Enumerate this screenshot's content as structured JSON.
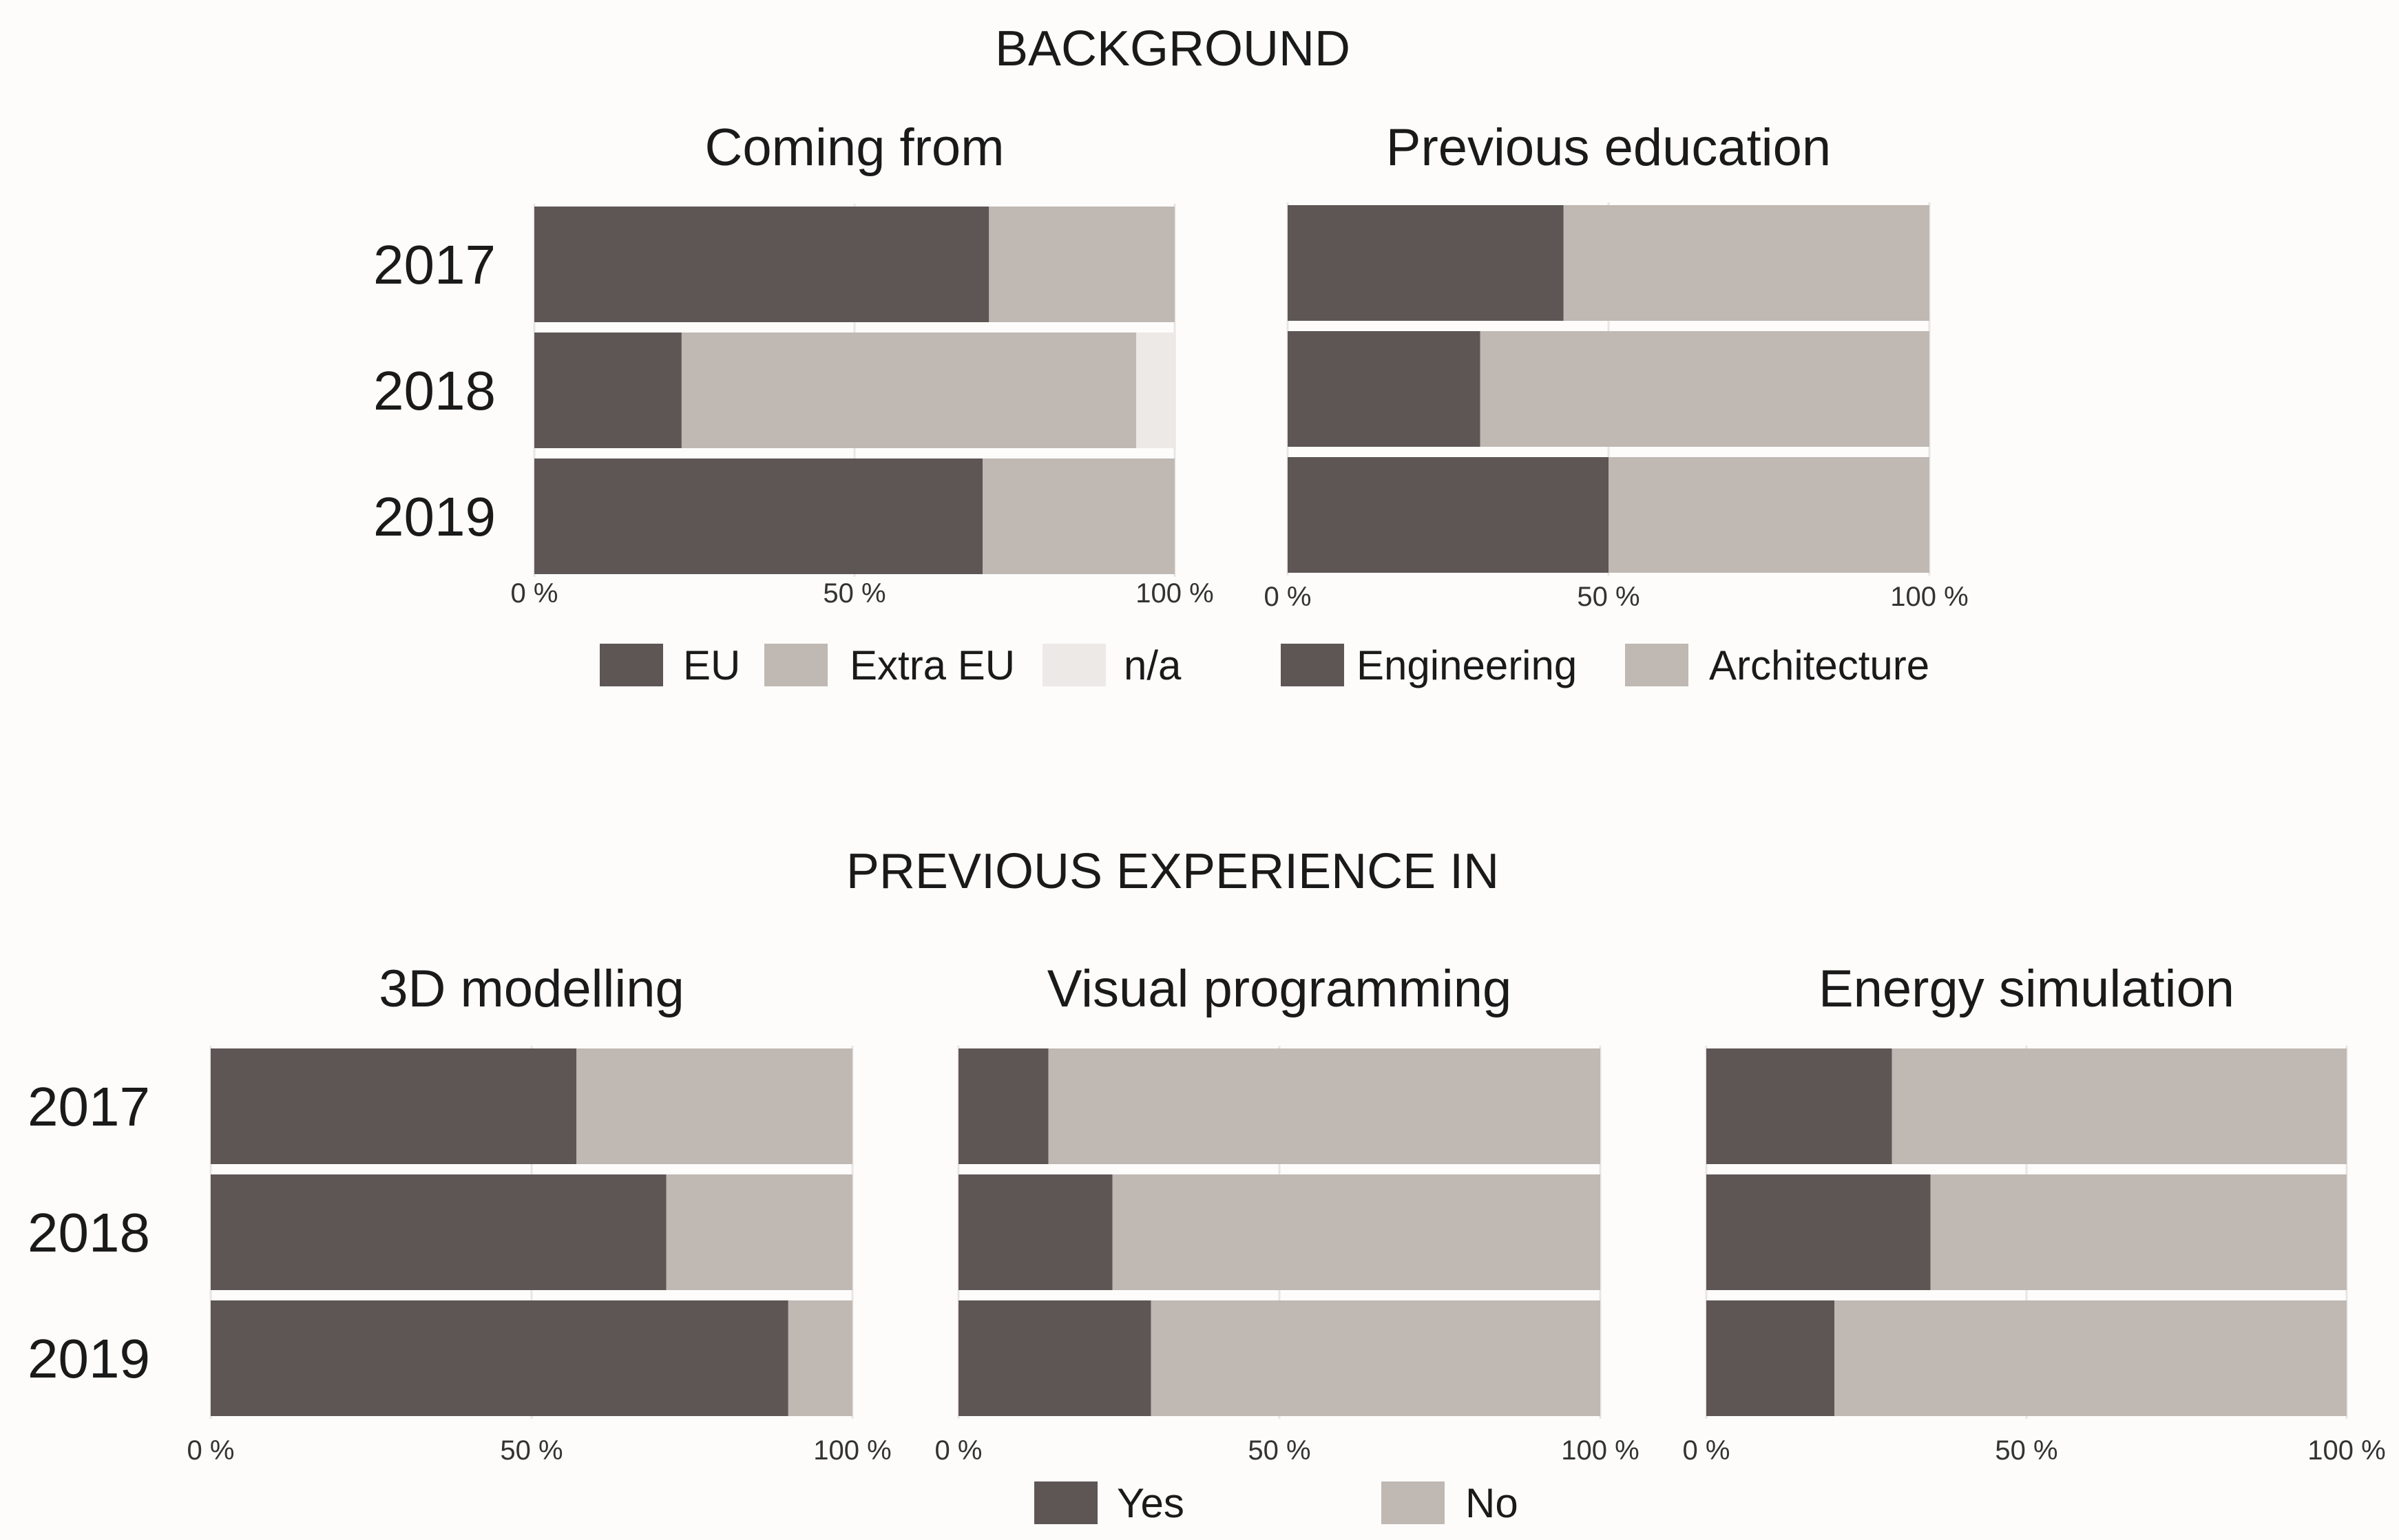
{
  "colors": {
    "dark": "#5d5654",
    "mid": "#bfb8b3",
    "light": "#ede9e7",
    "background": "#fdfcfb"
  },
  "section_titles": {
    "background": "BACKGROUND",
    "experience": "PREVIOUS EXPERIENCE IN"
  },
  "chart_data": [
    {
      "type": "bar",
      "orientation": "horizontal",
      "stacked": true,
      "section": "BACKGROUND",
      "title": "Coming from",
      "categories": [
        "2017",
        "2018",
        "2019"
      ],
      "series": [
        {
          "name": "EU",
          "color": "#5d5654",
          "values": [
            71,
            23,
            70
          ]
        },
        {
          "name": "Extra EU",
          "color": "#bfb8b3",
          "values": [
            29,
            71,
            30
          ]
        },
        {
          "name": "n/a",
          "color": "#ede9e7",
          "values": [
            0,
            6,
            0
          ]
        }
      ],
      "x_ticks": [
        "0 %",
        "50 %",
        "100 %"
      ],
      "xlim": [
        0,
        100
      ],
      "legend": [
        "EU",
        "Extra EU",
        "n/a"
      ]
    },
    {
      "type": "bar",
      "orientation": "horizontal",
      "stacked": true,
      "section": "BACKGROUND",
      "title": "Previous education",
      "categories": [
        "2017",
        "2018",
        "2019"
      ],
      "series": [
        {
          "name": "Engineering",
          "color": "#5d5654",
          "values": [
            43,
            30,
            50
          ]
        },
        {
          "name": "Architecture",
          "color": "#bfb8b3",
          "values": [
            57,
            70,
            50
          ]
        }
      ],
      "x_ticks": [
        "0 %",
        "50 %",
        "100 %"
      ],
      "xlim": [
        0,
        100
      ],
      "legend": [
        "Engineering",
        "Architecture"
      ]
    },
    {
      "type": "bar",
      "orientation": "horizontal",
      "stacked": true,
      "section": "PREVIOUS EXPERIENCE IN",
      "title": "3D modelling",
      "categories": [
        "2017",
        "2018",
        "2019"
      ],
      "series": [
        {
          "name": "Yes",
          "color": "#5d5654",
          "values": [
            57,
            71,
            90
          ]
        },
        {
          "name": "No",
          "color": "#bfb8b3",
          "values": [
            43,
            29,
            10
          ]
        }
      ],
      "x_ticks": [
        "0 %",
        "50 %",
        "100 %"
      ],
      "xlim": [
        0,
        100
      ]
    },
    {
      "type": "bar",
      "orientation": "horizontal",
      "stacked": true,
      "section": "PREVIOUS EXPERIENCE IN",
      "title": "Visual programming",
      "categories": [
        "2017",
        "2018",
        "2019"
      ],
      "series": [
        {
          "name": "Yes",
          "color": "#5d5654",
          "values": [
            14,
            24,
            30
          ]
        },
        {
          "name": "No",
          "color": "#bfb8b3",
          "values": [
            86,
            76,
            70
          ]
        }
      ],
      "x_ticks": [
        "0 %",
        "50 %",
        "100 %"
      ],
      "xlim": [
        0,
        100
      ]
    },
    {
      "type": "bar",
      "orientation": "horizontal",
      "stacked": true,
      "section": "PREVIOUS EXPERIENCE IN",
      "title": "Energy simulation",
      "categories": [
        "2017",
        "2018",
        "2019"
      ],
      "series": [
        {
          "name": "Yes",
          "color": "#5d5654",
          "values": [
            29,
            35,
            20
          ]
        },
        {
          "name": "No",
          "color": "#bfb8b3",
          "values": [
            71,
            65,
            80
          ]
        }
      ],
      "x_ticks": [
        "0 %",
        "50 %",
        "100 %"
      ],
      "xlim": [
        0,
        100
      ],
      "legend": [
        "Yes",
        "No"
      ]
    }
  ]
}
